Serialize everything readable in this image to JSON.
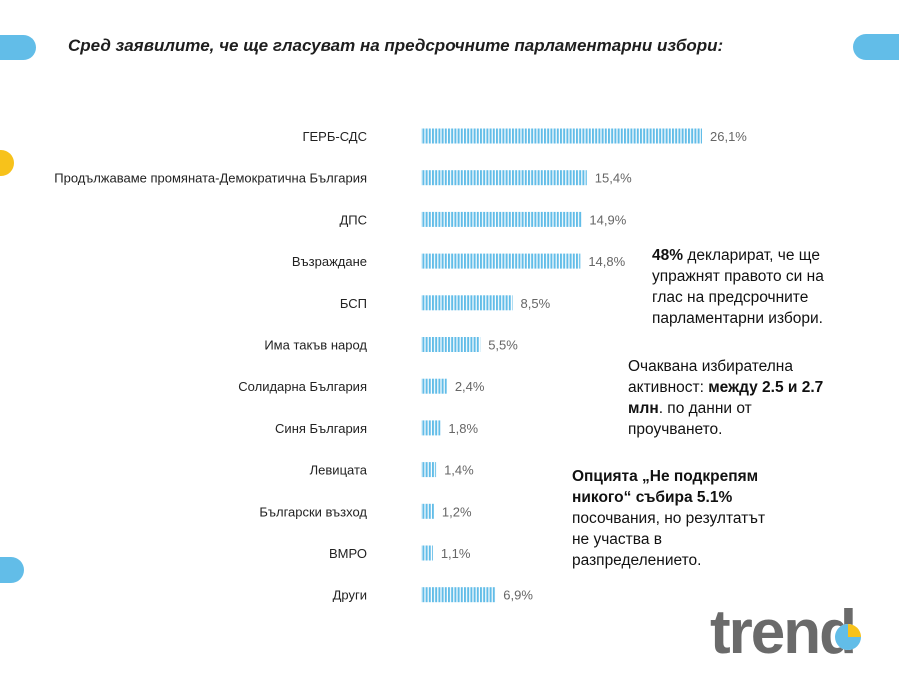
{
  "title": "Сред заявилите, че ще гласуват на предсрочните парламентарни избори:",
  "chart_data": {
    "type": "bar",
    "orientation": "horizontal",
    "categories": [
      "ГЕРБ-СДС",
      "Продължаваме промяната-Демократична България",
      "ДПС",
      "Възраждане",
      "БСП",
      "Има такъв народ",
      "Солидарна България",
      "Синя България",
      "Левицата",
      "Български възход",
      "ВМРО",
      "Други"
    ],
    "values": [
      26.1,
      15.4,
      14.9,
      14.8,
      8.5,
      5.5,
      2.4,
      1.8,
      1.4,
      1.2,
      1.1,
      6.9
    ],
    "value_labels": [
      "26,1%",
      "15,4%",
      "14,9%",
      "14,8%",
      "8,5%",
      "5,5%",
      "2,4%",
      "1,8%",
      "1,4%",
      "1,2%",
      "1,1%",
      "6,9%"
    ],
    "color": "#62bde8",
    "grid": false,
    "legend": false
  },
  "notes": {
    "n1_bold": "48%",
    "n1_rest": " декларират, че ще упражнят правото си на глас на предсрочните парламентарни избори.",
    "n2_pre": "Очаквана избирателна активност: ",
    "n2_bold": "между 2.5 и 2.7 млн",
    "n2_post": ". по данни от проучването.",
    "n3_bold": "Опцията „Не подкрепям никого“ събира 5.1%",
    "n3_rest": " посочвания, но резултатът не участва в разпределението."
  },
  "logo_text": "trend",
  "colors": {
    "accent": "#62bde8",
    "yellow": "#f7c21b",
    "logo_gray": "#6a6a6a"
  }
}
